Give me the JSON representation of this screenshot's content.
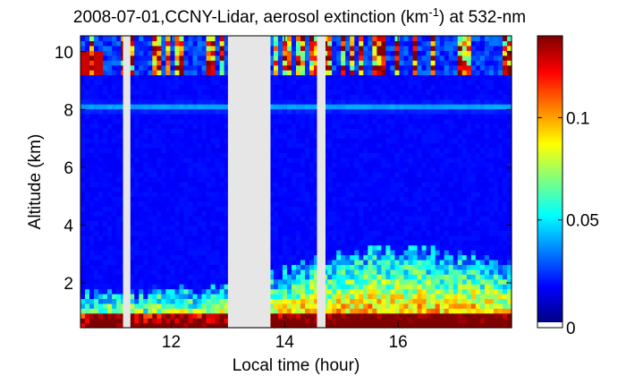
{
  "chart_data": {
    "type": "heatmap",
    "title": {
      "prefix": "2008-07-01,CCNY-Lidar, aerosol extinction (km",
      "superscript": "-1",
      "suffix": ") at 532-nm"
    },
    "xlabel": "Local time (hour)",
    "ylabel": "Altitude (km)",
    "xlim": [
      10.4,
      18.0
    ],
    "ylim": [
      0.45,
      10.55
    ],
    "xticks": [
      {
        "value": 12,
        "label": "12"
      },
      {
        "value": 14,
        "label": "14"
      },
      {
        "value": 16,
        "label": "16"
      }
    ],
    "yticks": [
      {
        "value": 2,
        "label": "2"
      },
      {
        "value": 4,
        "label": "4"
      },
      {
        "value": 6,
        "label": "6"
      },
      {
        "value": 8,
        "label": "8"
      },
      {
        "value": 10,
        "label": "10"
      }
    ],
    "colorbar": {
      "colormap": "jet",
      "range": [
        0,
        0.14
      ],
      "ticks": [
        {
          "value": 0,
          "label": "0"
        },
        {
          "value": 0.05,
          "label": "0.05"
        },
        {
          "value": 0.1,
          "label": "0.1"
        }
      ]
    },
    "no_data_color": "#e6e6e6",
    "no_data_intervals": [
      [
        11.15,
        11.28
      ],
      [
        13.0,
        13.75
      ],
      [
        14.57,
        14.72
      ]
    ],
    "features": {
      "boundary_layer_top_km": [
        {
          "time": 10.4,
          "value": 1.7
        },
        {
          "time": 11.0,
          "value": 1.6
        },
        {
          "time": 12.0,
          "value": 1.8
        },
        {
          "time": 13.0,
          "value": 1.9
        },
        {
          "time": 13.75,
          "value": 2.2
        },
        {
          "time": 14.5,
          "value": 2.8
        },
        {
          "time": 15.5,
          "value": 3.3
        },
        {
          "time": 16.5,
          "value": 3.1
        },
        {
          "time": 17.5,
          "value": 2.9
        },
        {
          "time": 18.0,
          "value": 2.7
        }
      ],
      "cloud_layer_km": [
        9.2,
        10.5
      ],
      "aerosol_layer_km": 8.1
    }
  }
}
